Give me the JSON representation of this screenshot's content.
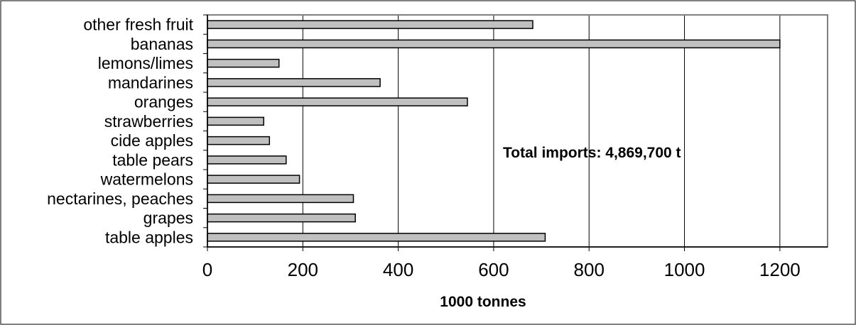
{
  "chart_data": {
    "type": "bar",
    "orientation": "horizontal",
    "categories": [
      "table apples",
      "grapes",
      "nectarines, peaches",
      "watermelons",
      "table pears",
      "cide apples",
      "strawberries",
      "oranges",
      "mandarines",
      "lemons/limes",
      "bananas",
      "other fresh fruit"
    ],
    "values": [
      708,
      310,
      306,
      193,
      165,
      130,
      118,
      545,
      362,
      150,
      1200,
      682
    ],
    "xlabel": "1000 tonnes",
    "xlim": [
      0,
      1300
    ],
    "xticks": [
      0,
      200,
      400,
      600,
      800,
      1000,
      1200
    ],
    "grid": "vertical",
    "annotation": "Total imports: 4,869,700 t",
    "colors": {
      "bar_fill": "#c0c0c0",
      "bar_stroke": "#000000",
      "plot_border": "#808080",
      "grid": "#000000"
    }
  }
}
